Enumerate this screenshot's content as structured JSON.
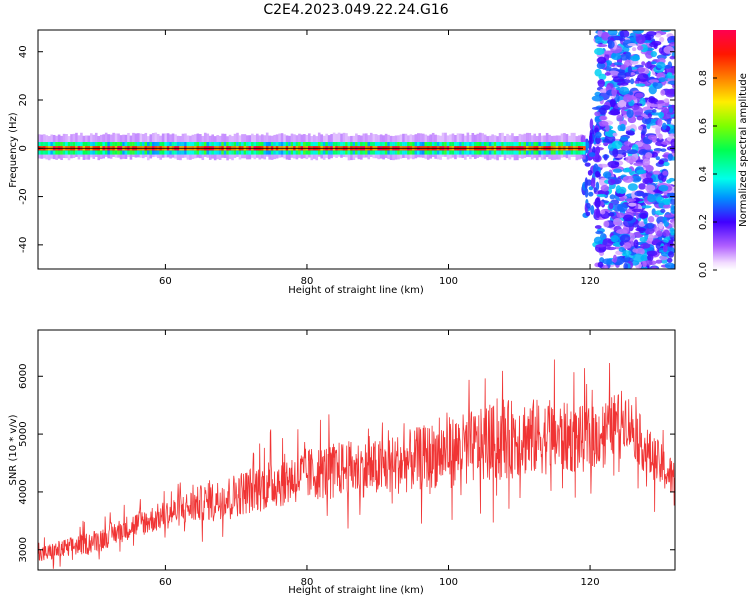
{
  "title": "C2E4.2023.049.22.24.G16",
  "colors": {
    "snr_line": "#f03434",
    "zero_line": "#000000"
  },
  "chart_data": [
    {
      "type": "heatmap",
      "xlabel": "Height of straight line (km)",
      "ylabel": "Frequency (Hz)",
      "xlim": [
        42,
        132
      ],
      "ylim": [
        -50,
        49
      ],
      "xticks": [
        60,
        80,
        100,
        120
      ],
      "yticks": [
        -40,
        -20,
        0,
        20,
        40
      ],
      "colorbar": {
        "label": "Normalized spectral amplitude",
        "range": [
          0.0,
          1.0
        ],
        "ticks": [
          "0.0",
          "0.2",
          "0.4",
          "0.6",
          "0.8"
        ],
        "colormap": "gist_rainbow_r"
      },
      "features": {
        "signal_band_hz": [
          -2,
          2
        ],
        "signal_height_range_km": [
          42,
          119
        ],
        "signal_peak_amplitude": 1.0,
        "noise_region_km": [
          121,
          132
        ],
        "noise_amplitude_range": [
          0.05,
          0.35
        ]
      }
    },
    {
      "type": "line",
      "xlabel": "Height of straight line (km)",
      "ylabel": "SNR (10 * v/v)",
      "xlim": [
        42,
        132
      ],
      "ylim": [
        2650,
        6800
      ],
      "xticks": [
        60,
        80,
        100,
        120
      ],
      "yticks": [
        3000,
        4000,
        5000,
        6000
      ],
      "series": [
        {
          "trend": {
            "x": [
              42,
              50,
              55,
              60,
              65,
              70,
              75,
              80,
              85,
              90,
              95,
              100,
              105,
              110,
              115,
              120,
              125,
              128,
              132
            ],
            "y": [
              2900,
              3150,
              3400,
              3600,
              3800,
              3950,
              4150,
              4300,
              4400,
              4400,
              4550,
              4700,
              4800,
              4950,
              4950,
              4900,
              5300,
              4700,
              4200
            ]
          },
          "noise_spread": {
            "x": [
              42,
              60,
              75,
              90,
              110,
              125,
              132
            ],
            "y": [
              150,
              250,
              450,
              500,
              700,
              500,
              350
            ]
          }
        }
      ]
    }
  ]
}
